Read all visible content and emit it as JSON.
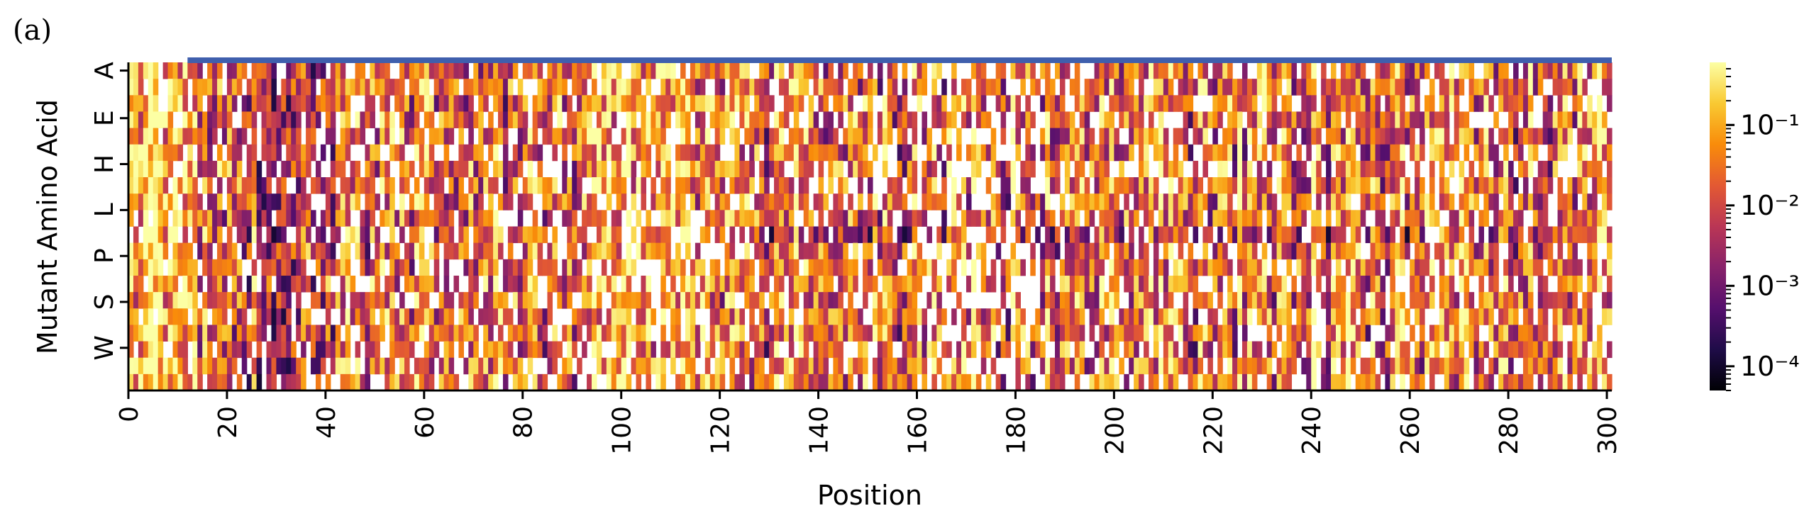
{
  "panel_label": "(a)",
  "chart_data": {
    "type": "heatmap",
    "title": "",
    "xlabel": "Position",
    "ylabel": "Mutant Amino Acid",
    "x_range": [
      0,
      301
    ],
    "x_ticks": [
      0,
      20,
      40,
      60,
      80,
      100,
      120,
      140,
      160,
      180,
      200,
      220,
      240,
      260,
      280,
      300
    ],
    "y_tick_labels": [
      "A",
      "E",
      "H",
      "L",
      "P",
      "S",
      "W"
    ],
    "row_count": 20,
    "colorscale": "inferno",
    "log_scale": true,
    "value_range": [
      5e-05,
      0.6
    ],
    "colorbar_ticks": [
      {
        "value": 0.1,
        "label": "10⁻¹"
      },
      {
        "value": 0.01,
        "label": "10⁻²"
      },
      {
        "value": 0.001,
        "label": "10⁻³"
      },
      {
        "value": 0.0001,
        "label": "10⁻⁴"
      }
    ],
    "missing_values_color": "#ffffff",
    "annotation_bar": {
      "x_start": 12,
      "x_end": 301,
      "color": "#3f5fad"
    },
    "cell_summary": "Dense per-position mutation frequencies; values span roughly 1e-4 to 5e-1 with many missing (white) cells."
  }
}
